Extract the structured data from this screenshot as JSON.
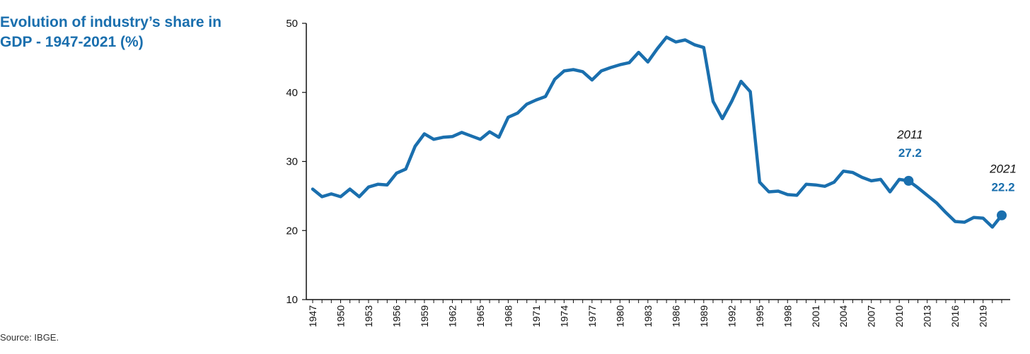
{
  "chart_data": {
    "type": "line",
    "title": "Evolution of industry’s share in GDP - 1947-2021 (%)",
    "source": "Source: IBGE.",
    "ylim": [
      10,
      50
    ],
    "yticks": [
      10,
      20,
      30,
      40,
      50
    ],
    "xtick_labels": [
      "1947",
      "1950",
      "1953",
      "1956",
      "1959",
      "1962",
      "1965",
      "1968",
      "1971",
      "1974",
      "1977",
      "1980",
      "1983",
      "1986",
      "1989",
      "1992",
      "1995",
      "1998",
      "2001",
      "2004",
      "2007",
      "2010",
      "2013",
      "2016",
      "2019"
    ],
    "grid": false,
    "line_color": "#1a6fae",
    "series": [
      {
        "x": [
          1947,
          1948,
          1949,
          1950,
          1951,
          1952,
          1953,
          1954,
          1955,
          1956,
          1957,
          1958,
          1959,
          1960,
          1961,
          1962,
          1963,
          1964,
          1965,
          1966,
          1967,
          1968,
          1969,
          1970,
          1971,
          1972,
          1973,
          1974,
          1975,
          1976,
          1977,
          1978,
          1979,
          1980,
          1981,
          1982,
          1983,
          1984,
          1985,
          1986,
          1987,
          1988,
          1989,
          1990,
          1991,
          1992,
          1993,
          1994,
          1995,
          1996,
          1997,
          1998,
          1999,
          2000,
          2001,
          2002,
          2003,
          2004,
          2005,
          2006,
          2007,
          2008,
          2009,
          2010,
          2011,
          2012,
          2013,
          2014,
          2015,
          2016,
          2017,
          2018,
          2019,
          2020,
          2021
        ],
        "values": [
          26.0,
          24.9,
          25.3,
          24.9,
          26.0,
          24.9,
          26.3,
          26.7,
          26.6,
          28.3,
          28.9,
          32.2,
          34.0,
          33.2,
          33.5,
          33.6,
          34.2,
          33.7,
          33.2,
          34.3,
          33.5,
          36.4,
          37.0,
          38.3,
          38.9,
          39.4,
          41.9,
          43.1,
          43.3,
          43.0,
          41.8,
          43.1,
          43.6,
          44.0,
          44.3,
          45.8,
          44.4,
          46.3,
          48.0,
          47.3,
          47.6,
          46.9,
          46.5,
          38.7,
          36.2,
          38.7,
          41.6,
          40.1,
          27.0,
          25.6,
          25.7,
          25.2,
          25.1,
          26.7,
          26.6,
          26.4,
          27.0,
          28.6,
          28.4,
          27.7,
          27.2,
          27.4,
          25.6,
          27.4,
          27.2,
          26.2,
          25.1,
          24.0,
          22.6,
          21.3,
          21.2,
          21.9,
          21.8,
          20.5,
          22.2
        ]
      }
    ],
    "annotations": [
      {
        "year_label": "2011",
        "value_label": "27.2",
        "x": 2011,
        "y": 27.2
      },
      {
        "year_label": "2021",
        "value_label": "22.2",
        "x": 2021,
        "y": 22.2
      }
    ]
  }
}
